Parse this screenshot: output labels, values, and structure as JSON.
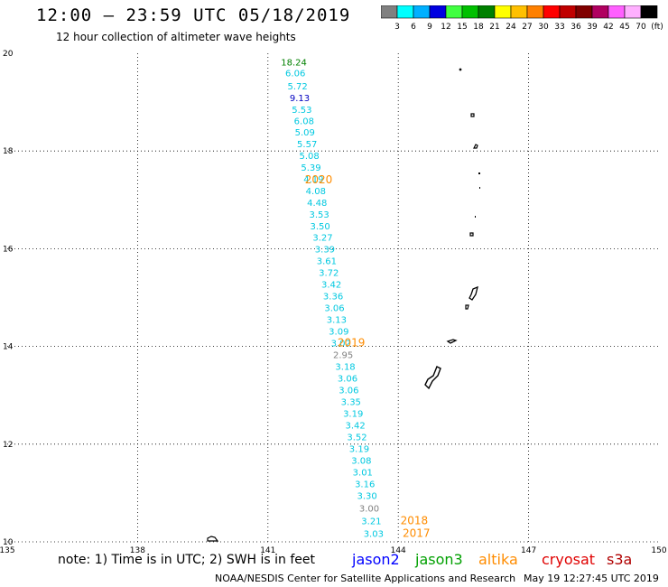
{
  "header": {
    "title": "12:00 – 23:59 UTC 05/18/2019",
    "subtitle": "12 hour collection of altimeter wave heights"
  },
  "legend": {
    "colors": [
      "#808080",
      "#00ffff",
      "#00b0ff",
      "#0000e0",
      "#40ff40",
      "#00c000",
      "#008000",
      "#ffff00",
      "#ffc000",
      "#ff8000",
      "#ff0000",
      "#c00000",
      "#800000",
      "#b00060",
      "#ff60ff",
      "#ffb0ff",
      "#000000"
    ],
    "labels": [
      "3",
      "6",
      "9",
      "12",
      "15",
      "18",
      "21",
      "24",
      "27",
      "30",
      "33",
      "36",
      "39",
      "42",
      "45",
      "70",
      "(ft)"
    ]
  },
  "axes": {
    "x_ticks": [
      "135",
      "138",
      "141",
      "144",
      "147",
      "150"
    ],
    "y_ticks": [
      "20",
      "18",
      "16",
      "14",
      "12",
      "10"
    ]
  },
  "observations": [
    {
      "lon": 141.3,
      "lat": 19.75,
      "swh": "18.24",
      "color": "#008000"
    },
    {
      "lon": 141.4,
      "lat": 19.53,
      "swh": "6.06",
      "color": "#00c8e0"
    },
    {
      "lon": 141.45,
      "lat": 19.26,
      "swh": "5.72",
      "color": "#00c8e0"
    },
    {
      "lon": 141.5,
      "lat": 19.02,
      "swh": "9.13",
      "color": "#0000c0"
    },
    {
      "lon": 141.55,
      "lat": 18.78,
      "swh": "5.53",
      "color": "#00c8e0"
    },
    {
      "lon": 141.6,
      "lat": 18.55,
      "swh": "6.08",
      "color": "#00c8e0"
    },
    {
      "lon": 141.62,
      "lat": 18.32,
      "swh": "5.09",
      "color": "#00c8e0"
    },
    {
      "lon": 141.67,
      "lat": 18.08,
      "swh": "5.57",
      "color": "#00c8e0"
    },
    {
      "lon": 141.72,
      "lat": 17.84,
      "swh": "5.08",
      "color": "#00c8e0"
    },
    {
      "lon": 141.76,
      "lat": 17.6,
      "swh": "5.39",
      "color": "#00c8e0"
    },
    {
      "lon": 141.82,
      "lat": 17.36,
      "swh": "4.19",
      "color": "#00c8e0"
    },
    {
      "lon": 141.87,
      "lat": 17.12,
      "swh": "4.08",
      "color": "#00c8e0"
    },
    {
      "lon": 141.9,
      "lat": 16.88,
      "swh": "4.48",
      "color": "#00c8e0"
    },
    {
      "lon": 141.95,
      "lat": 16.64,
      "swh": "3.53",
      "color": "#00c8e0"
    },
    {
      "lon": 141.97,
      "lat": 16.4,
      "swh": "3.50",
      "color": "#00c8e0"
    },
    {
      "lon": 142.03,
      "lat": 16.16,
      "swh": "3.27",
      "color": "#00c8e0"
    },
    {
      "lon": 142.08,
      "lat": 15.92,
      "swh": "3.39",
      "color": "#00c8e0"
    },
    {
      "lon": 142.12,
      "lat": 15.68,
      "swh": "3.61",
      "color": "#00c8e0"
    },
    {
      "lon": 142.17,
      "lat": 15.44,
      "swh": "3.72",
      "color": "#00c8e0"
    },
    {
      "lon": 142.23,
      "lat": 15.2,
      "swh": "3.42",
      "color": "#00c8e0"
    },
    {
      "lon": 142.27,
      "lat": 14.96,
      "swh": "3.36",
      "color": "#00c8e0"
    },
    {
      "lon": 142.3,
      "lat": 14.72,
      "swh": "3.06",
      "color": "#00c8e0"
    },
    {
      "lon": 142.35,
      "lat": 14.48,
      "swh": "3.13",
      "color": "#00c8e0"
    },
    {
      "lon": 142.4,
      "lat": 14.24,
      "swh": "3.09",
      "color": "#00c8e0"
    },
    {
      "lon": 142.45,
      "lat": 14.0,
      "swh": "3.02",
      "color": "#00c8e0"
    },
    {
      "lon": 142.5,
      "lat": 13.76,
      "swh": "2.95",
      "color": "#808080"
    },
    {
      "lon": 142.55,
      "lat": 13.52,
      "swh": "3.18",
      "color": "#00c8e0"
    },
    {
      "lon": 142.6,
      "lat": 13.28,
      "swh": "3.06",
      "color": "#00c8e0"
    },
    {
      "lon": 142.63,
      "lat": 13.04,
      "swh": "3.06",
      "color": "#00c8e0"
    },
    {
      "lon": 142.68,
      "lat": 12.8,
      "swh": "3.35",
      "color": "#00c8e0"
    },
    {
      "lon": 142.73,
      "lat": 12.56,
      "swh": "3.19",
      "color": "#00c8e0"
    },
    {
      "lon": 142.78,
      "lat": 12.32,
      "swh": "3.42",
      "color": "#00c8e0"
    },
    {
      "lon": 142.82,
      "lat": 12.08,
      "swh": "3.52",
      "color": "#00c8e0"
    },
    {
      "lon": 142.87,
      "lat": 11.84,
      "swh": "3.19",
      "color": "#00c8e0"
    },
    {
      "lon": 142.92,
      "lat": 11.6,
      "swh": "3.08",
      "color": "#00c8e0"
    },
    {
      "lon": 142.95,
      "lat": 11.36,
      "swh": "3.01",
      "color": "#00c8e0"
    },
    {
      "lon": 143.0,
      "lat": 11.12,
      "swh": "3.16",
      "color": "#00c8e0"
    },
    {
      "lon": 143.05,
      "lat": 10.88,
      "swh": "3.30",
      "color": "#00c8e0"
    },
    {
      "lon": 143.1,
      "lat": 10.62,
      "swh": "3.00",
      "color": "#808080"
    },
    {
      "lon": 143.15,
      "lat": 10.36,
      "swh": "3.21",
      "color": "#00c8e0"
    },
    {
      "lon": 143.2,
      "lat": 10.1,
      "swh": "3.03",
      "color": "#00c8e0"
    }
  ],
  "time_labels": [
    {
      "lon": 141.85,
      "lat": 17.34,
      "text": "2020"
    },
    {
      "lon": 142.6,
      "lat": 14.0,
      "text": "2019"
    },
    {
      "lon": 144.05,
      "lat": 10.36,
      "text": "2018"
    },
    {
      "lon": 144.1,
      "lat": 10.1,
      "text": "2017"
    }
  ],
  "satellites": [
    {
      "name": "jason2",
      "color": "#0000ff"
    },
    {
      "name": "jason3",
      "color": "#00a000"
    },
    {
      "name": "altika",
      "color": "#ff8c00"
    },
    {
      "name": "cryosat",
      "color": "#e00000"
    },
    {
      "name": "s3a",
      "color": "#b00000"
    }
  ],
  "footer": {
    "note": "note: 1) Time is in UTC; 2) SWH is in feet",
    "credit": "NOAA/NESDIS Center for Satellite Applications and Research",
    "timestamp": "May 19 12:27:45 UTC 2019"
  }
}
